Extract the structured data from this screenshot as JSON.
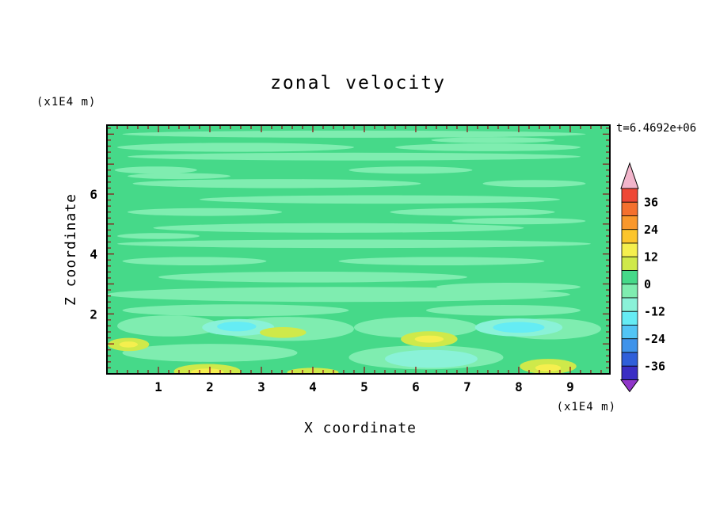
{
  "header": {
    "title": "zonal velocity",
    "timestamp": "t=6.4692e+06"
  },
  "y_axis": {
    "unit_label": "(x1E4 m)",
    "axis_label": "Z coordinate",
    "tick_labels": [
      "2",
      "4",
      "6"
    ],
    "tick_values": [
      2,
      4,
      6
    ]
  },
  "x_axis": {
    "unit_label": "(x1E4 m)",
    "axis_label": "X coordinate",
    "tick_labels": [
      "1",
      "2",
      "3",
      "4",
      "5",
      "6",
      "7",
      "8",
      "9"
    ],
    "tick_values": [
      1,
      2,
      3,
      4,
      5,
      6,
      7,
      8,
      9
    ]
  },
  "colorbar": {
    "labels": [
      "36",
      "24",
      "12",
      "0",
      "-12",
      "-24",
      "-36"
    ],
    "label_values": [
      36,
      24,
      12,
      0,
      -12,
      -24,
      -36
    ],
    "segment_colors_top_to_bottom": [
      "#ee4836",
      "#f4702e",
      "#f9982c",
      "#fcc52c",
      "#f5ef4e",
      "#cfe94a",
      "#46d989",
      "#7fedb0",
      "#8af2d8",
      "#65ecf4",
      "#52c5f5",
      "#3f93ea",
      "#2f5fd9",
      "#3a2ec4"
    ],
    "arrow_top_color": "#f2b5cb",
    "arrow_bottom_color": "#9036c9",
    "contour_interval": 6
  },
  "chart_data": {
    "type": "filled_contour",
    "title": "zonal velocity",
    "xlabel": "X coordinate (x1E4 m)",
    "ylabel": "Z coordinate (x1E4 m)",
    "time_annotation": "t=6.4692e+06",
    "x_range": [
      0,
      9.77
    ],
    "z_range": [
      0,
      8.3
    ],
    "value_range_shown": [
      -42,
      42
    ],
    "contour_interval": 6,
    "tick_color": "#8b1a1a",
    "frame_color": "#000000",
    "palette": {
      "12..18": "#f5ef4e",
      "6..12": "#cfe94a",
      "0..6": "#46d989",
      "-6..0": "#7fedb0",
      "-12..-6": "#8af2d8",
      "-18..-12": "#65ecf4"
    },
    "base_level": "0..6",
    "features": [
      {
        "x": 4.8,
        "z": 8.0,
        "rx": 4.5,
        "rz": 0.12,
        "level": "-6..0"
      },
      {
        "x": 2.5,
        "z": 7.56,
        "rx": 2.3,
        "rz": 0.15,
        "level": "-6..0"
      },
      {
        "x": 7.4,
        "z": 7.56,
        "rx": 1.8,
        "rz": 0.13,
        "level": "-6..0"
      },
      {
        "x": 4.8,
        "z": 7.25,
        "rx": 4.4,
        "rz": 0.13,
        "level": "-6..0"
      },
      {
        "x": 7.5,
        "z": 7.8,
        "rx": 1.2,
        "rz": 0.1,
        "level": "-6..0"
      },
      {
        "x": 0.95,
        "z": 6.8,
        "rx": 0.8,
        "rz": 0.12,
        "level": "-6..0"
      },
      {
        "x": 5.9,
        "z": 6.8,
        "rx": 1.2,
        "rz": 0.12,
        "level": "-6..0"
      },
      {
        "x": 3.3,
        "z": 6.35,
        "rx": 2.8,
        "rz": 0.15,
        "level": "-6..0"
      },
      {
        "x": 8.3,
        "z": 6.35,
        "rx": 1.0,
        "rz": 0.12,
        "level": "-6..0"
      },
      {
        "x": 1.4,
        "z": 6.6,
        "rx": 1.0,
        "rz": 0.1,
        "level": "-6..0"
      },
      {
        "x": 5.3,
        "z": 5.82,
        "rx": 3.5,
        "rz": 0.14,
        "level": "-6..0"
      },
      {
        "x": 1.9,
        "z": 5.4,
        "rx": 1.5,
        "rz": 0.13,
        "level": "-6..0"
      },
      {
        "x": 7.1,
        "z": 5.4,
        "rx": 1.6,
        "rz": 0.13,
        "level": "-6..0"
      },
      {
        "x": 4.5,
        "z": 4.87,
        "rx": 3.6,
        "rz": 0.16,
        "level": "-6..0"
      },
      {
        "x": 8.0,
        "z": 5.1,
        "rx": 1.3,
        "rz": 0.11,
        "level": "-6..0"
      },
      {
        "x": 4.8,
        "z": 4.34,
        "rx": 4.6,
        "rz": 0.14,
        "level": "-6..0"
      },
      {
        "x": 1.0,
        "z": 4.6,
        "rx": 0.8,
        "rz": 0.1,
        "level": "-6..0"
      },
      {
        "x": 1.7,
        "z": 3.76,
        "rx": 1.4,
        "rz": 0.14,
        "level": "-6..0"
      },
      {
        "x": 6.5,
        "z": 3.76,
        "rx": 2.0,
        "rz": 0.14,
        "level": "-6..0"
      },
      {
        "x": 4.0,
        "z": 3.23,
        "rx": 3.0,
        "rz": 0.18,
        "level": "-6..0"
      },
      {
        "x": 7.8,
        "z": 2.9,
        "rx": 1.4,
        "rz": 0.14,
        "level": "-6..0"
      },
      {
        "x": 4.5,
        "z": 2.65,
        "rx": 4.5,
        "rz": 0.25,
        "level": "-6..0"
      },
      {
        "x": 2.5,
        "z": 2.12,
        "rx": 2.2,
        "rz": 0.2,
        "level": "-6..0"
      },
      {
        "x": 7.7,
        "z": 2.12,
        "rx": 1.5,
        "rz": 0.18,
        "level": "-6..0"
      },
      {
        "x": 1.2,
        "z": 1.6,
        "rx": 1.0,
        "rz": 0.35,
        "level": "-6..0"
      },
      {
        "x": 3.5,
        "z": 1.5,
        "rx": 1.3,
        "rz": 0.4,
        "level": "-6..0"
      },
      {
        "x": 6.0,
        "z": 1.55,
        "rx": 1.2,
        "rz": 0.35,
        "level": "-6..0"
      },
      {
        "x": 8.6,
        "z": 1.5,
        "rx": 1.0,
        "rz": 0.35,
        "level": "-6..0"
      },
      {
        "x": 6.2,
        "z": 0.55,
        "rx": 1.5,
        "rz": 0.4,
        "level": "-6..0"
      },
      {
        "x": 2.0,
        "z": 0.7,
        "rx": 1.7,
        "rz": 0.3,
        "level": "-6..0"
      },
      {
        "x": 2.55,
        "z": 1.55,
        "rx": 0.7,
        "rz": 0.28,
        "level": "-12..-6"
      },
      {
        "x": 8.0,
        "z": 1.55,
        "rx": 0.85,
        "rz": 0.3,
        "level": "-12..-6"
      },
      {
        "x": 6.3,
        "z": 0.5,
        "rx": 0.9,
        "rz": 0.3,
        "level": "-12..-6"
      },
      {
        "x": 2.52,
        "z": 1.58,
        "rx": 0.38,
        "rz": 0.16,
        "level": "-18..-12"
      },
      {
        "x": 8.0,
        "z": 1.55,
        "rx": 0.5,
        "rz": 0.18,
        "level": "-18..-12"
      },
      {
        "x": 0.42,
        "z": 0.98,
        "rx": 0.4,
        "rz": 0.22,
        "level": "6..12"
      },
      {
        "x": 3.42,
        "z": 1.38,
        "rx": 0.45,
        "rz": 0.18,
        "level": "6..12"
      },
      {
        "x": 6.26,
        "z": 1.16,
        "rx": 0.55,
        "rz": 0.26,
        "level": "6..12"
      },
      {
        "x": 8.57,
        "z": 0.25,
        "rx": 0.55,
        "rz": 0.25,
        "level": "6..12"
      },
      {
        "x": 1.95,
        "z": 0.08,
        "rx": 0.65,
        "rz": 0.25,
        "level": "6..12"
      },
      {
        "x": 4.0,
        "z": 0.05,
        "rx": 0.5,
        "rz": 0.15,
        "level": "6..12"
      },
      {
        "x": 0.42,
        "z": 0.98,
        "rx": 0.18,
        "rz": 0.1,
        "level": "12..18"
      },
      {
        "x": 6.26,
        "z": 1.16,
        "rx": 0.28,
        "rz": 0.12,
        "level": "12..18"
      },
      {
        "x": 1.95,
        "z": 0.06,
        "rx": 0.32,
        "rz": 0.12,
        "level": "12..18"
      },
      {
        "x": 8.57,
        "z": 0.2,
        "rx": 0.25,
        "rz": 0.12,
        "level": "12..18"
      }
    ]
  }
}
